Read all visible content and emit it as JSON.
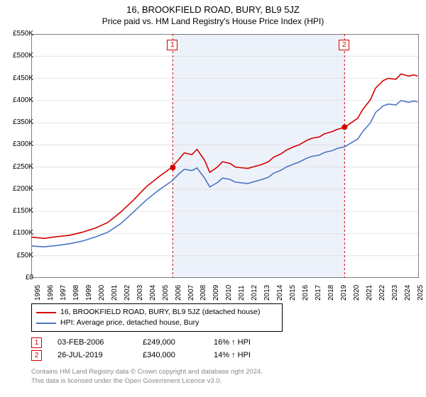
{
  "title": "16, BROOKFIELD ROAD, BURY, BL9 5JZ",
  "subtitle": "Price paid vs. HM Land Registry's House Price Index (HPI)",
  "chart": {
    "type": "line",
    "background_color": "#ffffff",
    "shade_band": {
      "x_from": 2006.1,
      "x_to": 2019.6,
      "fill": "#edf2fa"
    },
    "xlim": [
      1995,
      2025.4
    ],
    "ylim": [
      0,
      550000
    ],
    "ytick_step": 50000,
    "ytick_labels": [
      "£0",
      "£50K",
      "£100K",
      "£150K",
      "£200K",
      "£250K",
      "£300K",
      "£350K",
      "£400K",
      "£450K",
      "£500K",
      "£550K"
    ],
    "xticks": [
      1995,
      1996,
      1997,
      1998,
      1999,
      2000,
      2001,
      2002,
      2003,
      2004,
      2005,
      2006,
      2007,
      2008,
      2009,
      2010,
      2011,
      2012,
      2013,
      2014,
      2015,
      2016,
      2017,
      2018,
      2019,
      2020,
      2021,
      2022,
      2023,
      2024,
      2025
    ],
    "grid_color": "#d9d9d9",
    "axis_color": "#000000",
    "line_width": 1.6,
    "series": [
      {
        "name": "property",
        "color": "#d40000",
        "label": "16, BROOKFIELD ROAD, BURY, BL9 5JZ (detached house)",
        "data": [
          [
            1995,
            92000
          ],
          [
            1996,
            89000
          ],
          [
            1997,
            93000
          ],
          [
            1998,
            96000
          ],
          [
            1999,
            103000
          ],
          [
            2000,
            112000
          ],
          [
            2001,
            125000
          ],
          [
            2002,
            148000
          ],
          [
            2003,
            175000
          ],
          [
            2004,
            205000
          ],
          [
            2005,
            228000
          ],
          [
            2006,
            249000
          ],
          [
            2006.6,
            268000
          ],
          [
            2007,
            282000
          ],
          [
            2007.6,
            278000
          ],
          [
            2008,
            290000
          ],
          [
            2008.6,
            265000
          ],
          [
            2009,
            238000
          ],
          [
            2009.6,
            250000
          ],
          [
            2010,
            262000
          ],
          [
            2010.6,
            258000
          ],
          [
            2011,
            250000
          ],
          [
            2011.6,
            248000
          ],
          [
            2012,
            247000
          ],
          [
            2012.6,
            252000
          ],
          [
            2013,
            255000
          ],
          [
            2013.6,
            262000
          ],
          [
            2014,
            272000
          ],
          [
            2014.6,
            280000
          ],
          [
            2015,
            288000
          ],
          [
            2015.6,
            296000
          ],
          [
            2016,
            300000
          ],
          [
            2016.6,
            310000
          ],
          [
            2017,
            315000
          ],
          [
            2017.6,
            318000
          ],
          [
            2018,
            325000
          ],
          [
            2018.6,
            330000
          ],
          [
            2019,
            335000
          ],
          [
            2019.6,
            340000
          ],
          [
            2020,
            348000
          ],
          [
            2020.6,
            360000
          ],
          [
            2021,
            380000
          ],
          [
            2021.6,
            402000
          ],
          [
            2022,
            428000
          ],
          [
            2022.6,
            445000
          ],
          [
            2023,
            450000
          ],
          [
            2023.6,
            448000
          ],
          [
            2024,
            460000
          ],
          [
            2024.6,
            455000
          ],
          [
            2025,
            458000
          ],
          [
            2025.3,
            455000
          ]
        ]
      },
      {
        "name": "hpi",
        "color": "#4a75c4",
        "label": "HPI: Average price, detached house, Bury",
        "data": [
          [
            1995,
            72000
          ],
          [
            1996,
            70000
          ],
          [
            1997,
            73000
          ],
          [
            1998,
            77000
          ],
          [
            1999,
            83000
          ],
          [
            2000,
            92000
          ],
          [
            2001,
            103000
          ],
          [
            2002,
            122000
          ],
          [
            2003,
            148000
          ],
          [
            2004,
            175000
          ],
          [
            2005,
            198000
          ],
          [
            2006,
            218000
          ],
          [
            2006.6,
            235000
          ],
          [
            2007,
            245000
          ],
          [
            2007.6,
            242000
          ],
          [
            2008,
            248000
          ],
          [
            2008.6,
            225000
          ],
          [
            2009,
            205000
          ],
          [
            2009.6,
            215000
          ],
          [
            2010,
            225000
          ],
          [
            2010.6,
            222000
          ],
          [
            2011,
            216000
          ],
          [
            2011.6,
            214000
          ],
          [
            2012,
            213000
          ],
          [
            2012.6,
            218000
          ],
          [
            2013,
            221000
          ],
          [
            2013.6,
            227000
          ],
          [
            2014,
            236000
          ],
          [
            2014.6,
            243000
          ],
          [
            2015,
            250000
          ],
          [
            2015.6,
            257000
          ],
          [
            2016,
            261000
          ],
          [
            2016.6,
            270000
          ],
          [
            2017,
            274000
          ],
          [
            2017.6,
            277000
          ],
          [
            2018,
            283000
          ],
          [
            2018.6,
            287000
          ],
          [
            2019,
            292000
          ],
          [
            2019.6,
            296000
          ],
          [
            2020,
            303000
          ],
          [
            2020.6,
            313000
          ],
          [
            2021,
            330000
          ],
          [
            2021.6,
            350000
          ],
          [
            2022,
            373000
          ],
          [
            2022.6,
            388000
          ],
          [
            2023,
            392000
          ],
          [
            2023.6,
            390000
          ],
          [
            2024,
            400000
          ],
          [
            2024.6,
            396000
          ],
          [
            2025,
            399000
          ],
          [
            2025.3,
            397000
          ]
        ]
      }
    ],
    "sale_markers": [
      {
        "n": "1",
        "x": 2006.1,
        "y": 249000,
        "dot_color": "#d40000"
      },
      {
        "n": "2",
        "x": 2019.57,
        "y": 340000,
        "dot_color": "#d40000"
      }
    ],
    "marker_box_color": "#d40000",
    "marker_vline_dash": "3,3"
  },
  "legend": {
    "rows": [
      {
        "color": "#d40000",
        "label": "16, BROOKFIELD ROAD, BURY, BL9 5JZ (detached house)"
      },
      {
        "color": "#4a75c4",
        "label": "HPI: Average price, detached house, Bury"
      }
    ]
  },
  "sales": [
    {
      "n": "1",
      "box_color": "#d40000",
      "date": "03-FEB-2006",
      "price": "£249,000",
      "note": "16% ↑ HPI"
    },
    {
      "n": "2",
      "box_color": "#d40000",
      "date": "26-JUL-2019",
      "price": "£340,000",
      "note": "14% ↑ HPI"
    }
  ],
  "footer": {
    "line1": "Contains HM Land Registry data © Crown copyright and database right 2024.",
    "line2": "This data is licensed under the Open Government Licence v3.0."
  }
}
